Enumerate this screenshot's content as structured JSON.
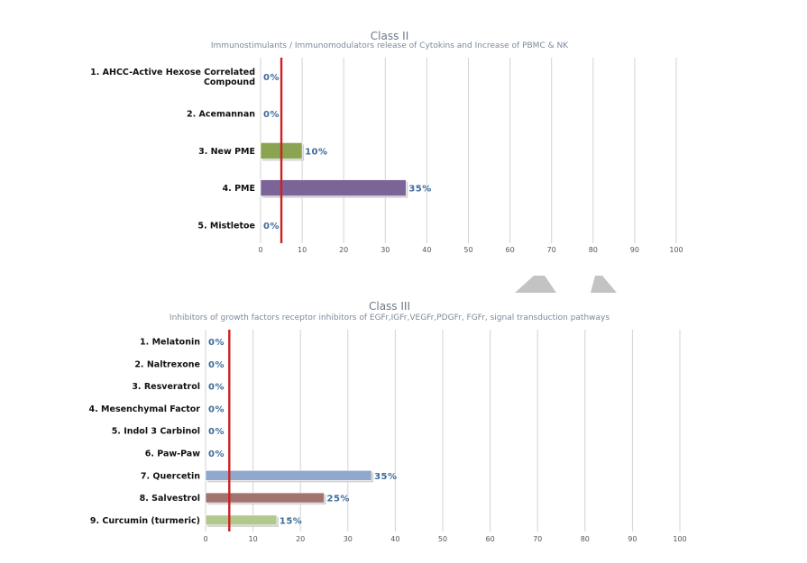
{
  "colors": {
    "grid": "#d3d3d3",
    "marker": "#cc2222",
    "bar_border": "#d0d0d0",
    "title": "#6b7a8a",
    "data_label": "#3d6a9a",
    "watermark": "#b8b8b8"
  },
  "icons": [
    "up-arrow-watermark-icon"
  ],
  "chart_data": [
    {
      "type": "bar",
      "orientation": "horizontal",
      "title": "Class II",
      "subtitle": "Immunostimulants / Immunomodulators release of Cytokins and Increase of PBMC & NK",
      "categories": [
        [
          "1. AHCC-Active Hexose Correlated",
          "Compound"
        ],
        [
          "2. Acemannan"
        ],
        [
          "3. New PME"
        ],
        [
          "4. PME"
        ],
        [
          "5. Mistletoe"
        ]
      ],
      "values": [
        0,
        0,
        10,
        35,
        0
      ],
      "value_labels": [
        "0%",
        "0%",
        "10%",
        "35%",
        "0%"
      ],
      "bar_colors": [
        "#4a72a8",
        "#4a72a8",
        "#8aa452",
        "#7b6598",
        "#4a72a8"
      ],
      "xlim": [
        0,
        100
      ],
      "xticks": [
        0,
        10,
        20,
        30,
        40,
        50,
        60,
        70,
        80,
        90,
        100
      ],
      "reference_line": 5,
      "grid": true
    },
    {
      "type": "bar",
      "orientation": "horizontal",
      "title": "Class III",
      "subtitle": "Inhibitors of growth factors receptor inhibitors of EGFr,IGFr,VEGFr,PDGFr, FGFr, signal transduction pathways",
      "categories": [
        [
          "1. Melatonin"
        ],
        [
          "2. Naltrexone"
        ],
        [
          "3. Resveratrol"
        ],
        [
          "4. Mesenchymal Factor"
        ],
        [
          "5. Indol 3 Carbinol"
        ],
        [
          "6. Paw-Paw"
        ],
        [
          "7. Quercetin"
        ],
        [
          "8. Salvestrol"
        ],
        [
          "9. Curcumin (turmeric)"
        ]
      ],
      "values": [
        0,
        0,
        0,
        0,
        0,
        0,
        35,
        25,
        15
      ],
      "value_labels": [
        "0%",
        "0%",
        "0%",
        "0%",
        "0%",
        "0%",
        "35%",
        "25%",
        "15%"
      ],
      "bar_colors": [
        "#4a72a8",
        "#4a72a8",
        "#4a72a8",
        "#4a72a8",
        "#4a72a8",
        "#4a72a8",
        "#90a8cc",
        "#a27470",
        "#b3c88f"
      ],
      "xlim": [
        0,
        100
      ],
      "xticks": [
        0,
        10,
        20,
        30,
        40,
        50,
        60,
        70,
        80,
        90,
        100
      ],
      "reference_line": 5,
      "grid": true
    }
  ]
}
